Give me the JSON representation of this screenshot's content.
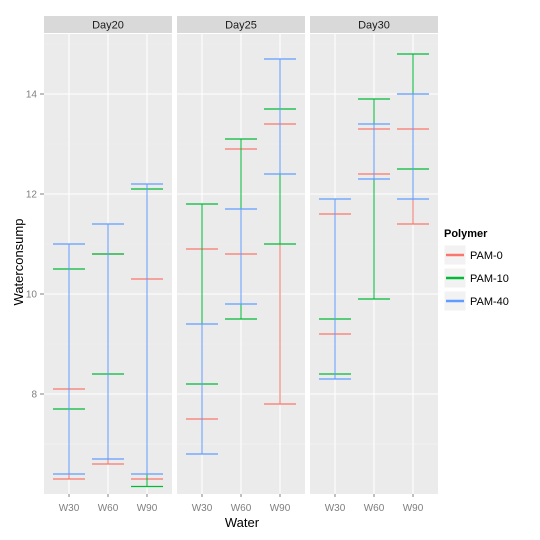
{
  "chart_data": {
    "type": "errorbar",
    "facet_variable": "Day",
    "facets": [
      "Day20",
      "Day25",
      "Day30"
    ],
    "categories": [
      "W30",
      "W60",
      "W90"
    ],
    "xlabel": "Water",
    "ylabel": "Waterconsump",
    "ylim": [
      6.0,
      15.2
    ],
    "yticks": [
      8,
      10,
      12,
      14
    ],
    "grid": true,
    "legend": {
      "title": "Polymer",
      "position": "right",
      "entries": [
        "PAM-0",
        "PAM-10",
        "PAM-40"
      ]
    },
    "colors": {
      "PAM-0": "#f8766d",
      "PAM-10": "#00ba38",
      "PAM-40": "#619cff",
      "panel_bg": "#ebebeb",
      "strip_bg": "#d9d9d9",
      "grid_major": "#ffffff",
      "grid_minor": "#f2f2f2"
    },
    "series": [
      {
        "name": "PAM-0",
        "bars": {
          "Day20": [
            [
              6.3,
              8.1
            ],
            [
              6.6,
              10.8
            ],
            [
              6.3,
              10.3
            ]
          ],
          "Day25": [
            [
              7.5,
              10.9
            ],
            [
              10.8,
              12.9
            ],
            [
              7.8,
              13.4
            ]
          ],
          "Day30": [
            [
              9.2,
              11.6
            ],
            [
              12.4,
              13.3
            ],
            [
              11.4,
              13.3
            ]
          ]
        }
      },
      {
        "name": "PAM-10",
        "bars": {
          "Day20": [
            [
              7.7,
              10.5
            ],
            [
              8.4,
              10.8
            ],
            [
              6.15,
              12.1
            ]
          ],
          "Day25": [
            [
              8.2,
              11.8
            ],
            [
              9.5,
              13.1
            ],
            [
              11.0,
              13.7
            ]
          ],
          "Day30": [
            [
              8.4,
              9.5
            ],
            [
              9.9,
              13.9
            ],
            [
              12.5,
              14.8
            ]
          ]
        }
      },
      {
        "name": "PAM-40",
        "bars": {
          "Day20": [
            [
              6.4,
              11.0
            ],
            [
              6.7,
              11.4
            ],
            [
              6.4,
              12.2
            ]
          ],
          "Day25": [
            [
              6.8,
              9.4
            ],
            [
              9.8,
              11.7
            ],
            [
              12.4,
              14.7
            ]
          ],
          "Day30": [
            [
              8.3,
              11.9
            ],
            [
              12.3,
              13.4
            ],
            [
              11.9,
              14.0
            ]
          ]
        }
      }
    ]
  }
}
